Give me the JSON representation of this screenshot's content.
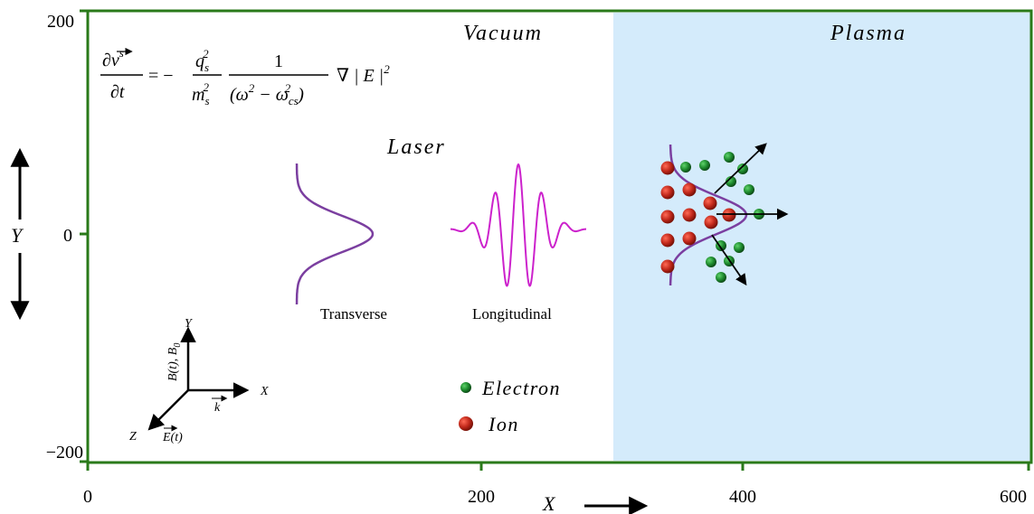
{
  "axes": {
    "x_label": "X",
    "y_label": "Y",
    "x_ticks": [
      "0",
      "200",
      "400",
      "600"
    ],
    "y_ticks": [
      "200",
      "0",
      "−200"
    ]
  },
  "regions": {
    "vacuum_label": "Vacuum",
    "plasma_label": "Plasma",
    "plasma_color": "#d4ebfb"
  },
  "equation": {
    "lhs_num": "∂v",
    "lhs_num_sup": "s",
    "lhs_den": "∂t",
    "equals_minus": "= −",
    "q": "q",
    "q_sub": "s",
    "q_sup": "2",
    "m": "m",
    "m_sub": "s",
    "m_sup": "2",
    "one": "1",
    "den_prefix": "(ω",
    "den_sup1": "2",
    "den_mid": " − ω",
    "den_sub": "cs",
    "den_sup2": "2",
    "den_suffix": ")",
    "grad": "∇ | E |",
    "grad_sup": "2"
  },
  "laser": {
    "title": "Laser",
    "transverse_label": "Transverse",
    "longitudinal_label": "Longitudinal",
    "color": "#cc22cc",
    "profile_color": "#7b3fa0"
  },
  "coordinate_frame": {
    "y_label": "Y",
    "x_label": "X",
    "z_label": "Z",
    "k_label": "k",
    "e_label": "E(t)",
    "b_label": "B(t), B",
    "b_sub": "0"
  },
  "legend": {
    "electron_label": "Electron",
    "ion_label": "Ion",
    "electron_color": "#1e8a2e",
    "ion_color": "#c0281a"
  },
  "frame_color": "#2a7a1a"
}
